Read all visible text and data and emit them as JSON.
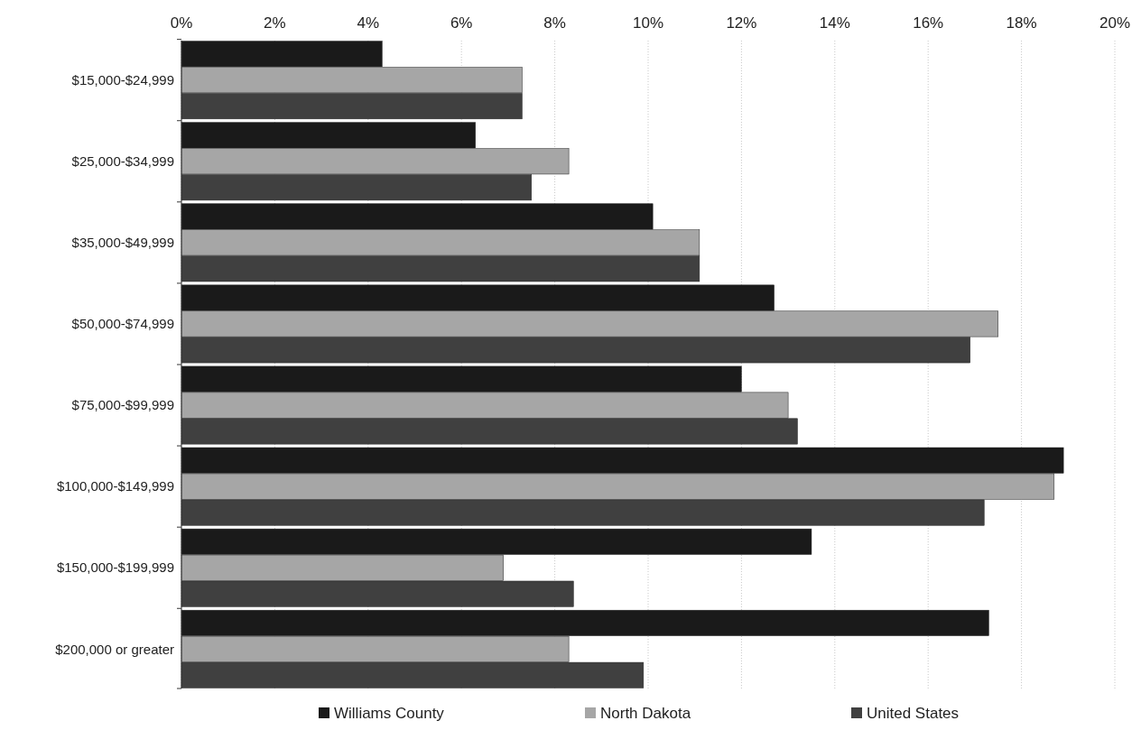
{
  "chart_data": {
    "type": "bar",
    "orientation": "horizontal",
    "categories": [
      "$15,000-$24,999",
      "$25,000-$34,999",
      "$35,000-$49,999",
      "$50,000-$74,999",
      "$75,000-$99,999",
      "$100,000-$149,999",
      "$150,000-$199,999",
      "$200,000 or greater"
    ],
    "series": [
      {
        "name": "Williams County",
        "color": "#1a1a1a",
        "values": [
          4.3,
          6.3,
          10.1,
          12.7,
          12.0,
          18.9,
          13.5,
          17.3
        ]
      },
      {
        "name": "North Dakota",
        "color": "#a6a6a6",
        "values": [
          7.3,
          8.3,
          11.1,
          17.5,
          13.0,
          18.7,
          6.9,
          8.3
        ]
      },
      {
        "name": "United States",
        "color": "#404040",
        "values": [
          7.3,
          7.5,
          11.1,
          16.9,
          13.2,
          17.2,
          8.4,
          9.9
        ]
      }
    ],
    "xlim": [
      0,
      20
    ],
    "xticks": [
      {
        "value": 0,
        "label": "0%"
      },
      {
        "value": 2,
        "label": "2%"
      },
      {
        "value": 4,
        "label": "4%"
      },
      {
        "value": 6,
        "label": "6%"
      },
      {
        "value": 8,
        "label": "8%"
      },
      {
        "value": 10,
        "label": "10%"
      },
      {
        "value": 12,
        "label": "12%"
      },
      {
        "value": 14,
        "label": "14%"
      },
      {
        "value": 16,
        "label": "16%"
      },
      {
        "value": 18,
        "label": "18%"
      },
      {
        "value": 20,
        "label": "20%"
      }
    ],
    "grid": "x",
    "legend": "bottom"
  }
}
